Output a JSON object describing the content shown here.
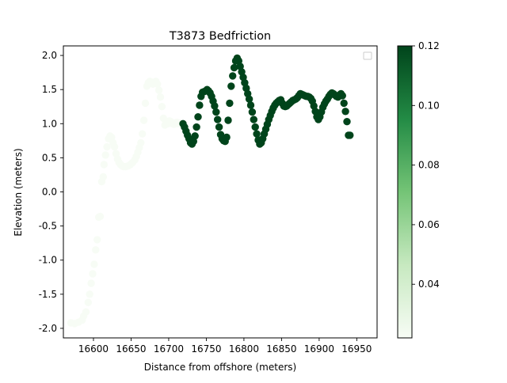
{
  "chart_data": {
    "type": "scatter",
    "title": "T3873 Bedfriction",
    "xlabel": "Distance from offshore (meters)",
    "ylabel": "Elevation (meters)",
    "xlim": [
      16560,
      16977
    ],
    "ylim": [
      -2.14,
      2.14
    ],
    "xticks": [
      16600,
      16650,
      16700,
      16750,
      16800,
      16850,
      16900,
      16950
    ],
    "yticks": [
      -2.0,
      -1.5,
      -1.0,
      -0.5,
      0.0,
      0.5,
      1.0,
      1.5,
      2.0
    ],
    "grid": false,
    "legend": "top-right (empty)",
    "colormap": "Greens",
    "colorbar": {
      "range": [
        0.022,
        0.12
      ],
      "ticks": [
        0.04,
        0.06,
        0.08,
        0.1,
        0.12
      ],
      "tick_labels": [
        "0.04",
        "0.06",
        "0.08",
        "0.10",
        "0.12"
      ]
    },
    "series": [
      {
        "color_value": 0.022,
        "points": [
          [
            16570,
            -1.92
          ],
          [
            16575,
            -1.93
          ],
          [
            16580,
            -1.91
          ],
          [
            16585,
            -1.88
          ],
          [
            16587,
            -1.82
          ],
          [
            16590,
            -1.76
          ],
          [
            16593,
            -1.62
          ],
          [
            16595,
            -1.5
          ],
          [
            16597,
            -1.34
          ],
          [
            16599,
            -1.2
          ],
          [
            16601,
            -1.06
          ],
          [
            16603,
            -0.85
          ],
          [
            16605,
            -0.7
          ],
          [
            16607,
            -0.37
          ],
          [
            16609,
            -0.36
          ],
          [
            16611,
            0.15
          ],
          [
            16613,
            0.22
          ],
          [
            16614,
            0.4
          ],
          [
            16616,
            0.54
          ],
          [
            16618,
            0.66
          ],
          [
            16620,
            0.78
          ],
          [
            16622,
            0.82
          ],
          [
            16624,
            0.8
          ],
          [
            16626,
            0.72
          ],
          [
            16628,
            0.66
          ],
          [
            16630,
            0.56
          ],
          [
            16632,
            0.48
          ],
          [
            16634,
            0.43
          ],
          [
            16636,
            0.4
          ],
          [
            16638,
            0.38
          ],
          [
            16640,
            0.37
          ],
          [
            16643,
            0.37
          ],
          [
            16646,
            0.38
          ],
          [
            16649,
            0.4
          ],
          [
            16652,
            0.43
          ],
          [
            16655,
            0.47
          ],
          [
            16657,
            0.52
          ],
          [
            16659,
            0.58
          ],
          [
            16661,
            0.65
          ],
          [
            16663,
            0.72
          ],
          [
            16665,
            0.85
          ],
          [
            16667,
            1.05
          ],
          [
            16669,
            1.3
          ],
          [
            16671,
            1.55
          ],
          [
            16673,
            1.6
          ],
          [
            16675,
            1.62
          ],
          [
            16677,
            1.61
          ],
          [
            16679,
            1.58
          ],
          [
            16681,
            1.6
          ],
          [
            16683,
            1.62
          ],
          [
            16685,
            1.58
          ],
          [
            16687,
            1.49
          ],
          [
            16689,
            1.39
          ],
          [
            16691,
            1.25
          ],
          [
            16693,
            1.08
          ],
          [
            16695,
            0.98
          ],
          [
            16697,
            1.02
          ],
          [
            16699,
            1.0
          ],
          [
            16701,
            1.04
          ],
          [
            16703,
            1.03
          ],
          [
            16705,
            1.0
          ],
          [
            16707,
            0.99
          ],
          [
            16709,
            1.01
          ],
          [
            16711,
            1.02
          ],
          [
            16713,
            1.0
          ],
          [
            16715,
            1.01
          ],
          [
            16717,
            1.0
          ]
        ]
      },
      {
        "color_value": 0.12,
        "points": [
          [
            16719,
            1.0
          ],
          [
            16721,
            0.95
          ],
          [
            16723,
            0.89
          ],
          [
            16725,
            0.83
          ],
          [
            16727,
            0.78
          ],
          [
            16729,
            0.72
          ],
          [
            16731,
            0.7
          ],
          [
            16733,
            0.74
          ],
          [
            16735,
            0.82
          ],
          [
            16737,
            0.95
          ],
          [
            16739,
            1.1
          ],
          [
            16741,
            1.27
          ],
          [
            16743,
            1.4
          ],
          [
            16745,
            1.46
          ],
          [
            16747,
            1.47
          ],
          [
            16749,
            1.48
          ],
          [
            16751,
            1.5
          ],
          [
            16753,
            1.48
          ],
          [
            16755,
            1.45
          ],
          [
            16757,
            1.4
          ],
          [
            16759,
            1.33
          ],
          [
            16761,
            1.26
          ],
          [
            16763,
            1.17
          ],
          [
            16765,
            1.06
          ],
          [
            16767,
            0.95
          ],
          [
            16769,
            0.84
          ],
          [
            16771,
            0.78
          ],
          [
            16773,
            0.75
          ],
          [
            16775,
            0.74
          ],
          [
            16777,
            0.8
          ],
          [
            16779,
            1.05
          ],
          [
            16781,
            1.3
          ],
          [
            16783,
            1.55
          ],
          [
            16785,
            1.7
          ],
          [
            16787,
            1.82
          ],
          [
            16789,
            1.92
          ],
          [
            16791,
            1.96
          ],
          [
            16793,
            1.92
          ],
          [
            16795,
            1.84
          ],
          [
            16797,
            1.76
          ],
          [
            16799,
            1.68
          ],
          [
            16801,
            1.6
          ],
          [
            16803,
            1.52
          ],
          [
            16805,
            1.44
          ],
          [
            16807,
            1.36
          ],
          [
            16809,
            1.27
          ],
          [
            16811,
            1.17
          ],
          [
            16813,
            1.06
          ],
          [
            16815,
            0.95
          ],
          [
            16817,
            0.85
          ],
          [
            16819,
            0.76
          ],
          [
            16821,
            0.7
          ],
          [
            16823,
            0.72
          ],
          [
            16825,
            0.78
          ],
          [
            16827,
            0.85
          ],
          [
            16829,
            0.92
          ],
          [
            16831,
            0.99
          ],
          [
            16833,
            1.06
          ],
          [
            16835,
            1.12
          ],
          [
            16837,
            1.18
          ],
          [
            16839,
            1.23
          ],
          [
            16841,
            1.27
          ],
          [
            16843,
            1.3
          ],
          [
            16845,
            1.32
          ],
          [
            16847,
            1.34
          ],
          [
            16849,
            1.35
          ],
          [
            16851,
            1.3
          ],
          [
            16853,
            1.26
          ],
          [
            16855,
            1.25
          ],
          [
            16857,
            1.26
          ],
          [
            16859,
            1.28
          ],
          [
            16861,
            1.3
          ],
          [
            16863,
            1.32
          ],
          [
            16865,
            1.34
          ],
          [
            16867,
            1.35
          ],
          [
            16869,
            1.36
          ],
          [
            16871,
            1.38
          ],
          [
            16873,
            1.41
          ],
          [
            16875,
            1.44
          ],
          [
            16877,
            1.43
          ],
          [
            16879,
            1.42
          ],
          [
            16881,
            1.41
          ],
          [
            16883,
            1.4
          ],
          [
            16885,
            1.4
          ],
          [
            16887,
            1.39
          ],
          [
            16889,
            1.37
          ],
          [
            16891,
            1.33
          ],
          [
            16893,
            1.26
          ],
          [
            16895,
            1.18
          ],
          [
            16897,
            1.1
          ],
          [
            16899,
            1.06
          ],
          [
            16901,
            1.1
          ],
          [
            16903,
            1.17
          ],
          [
            16905,
            1.24
          ],
          [
            16907,
            1.29
          ],
          [
            16909,
            1.33
          ],
          [
            16911,
            1.36
          ],
          [
            16913,
            1.4
          ],
          [
            16915,
            1.43
          ],
          [
            16917,
            1.45
          ],
          [
            16919,
            1.44
          ],
          [
            16921,
            1.42
          ],
          [
            16923,
            1.4
          ],
          [
            16925,
            1.39
          ],
          [
            16927,
            1.42
          ],
          [
            16929,
            1.44
          ],
          [
            16931,
            1.41
          ],
          [
            16933,
            1.3
          ],
          [
            16935,
            1.18
          ],
          [
            16937,
            1.03
          ],
          [
            16939,
            0.83
          ],
          [
            16941,
            0.83
          ]
        ]
      }
    ]
  }
}
